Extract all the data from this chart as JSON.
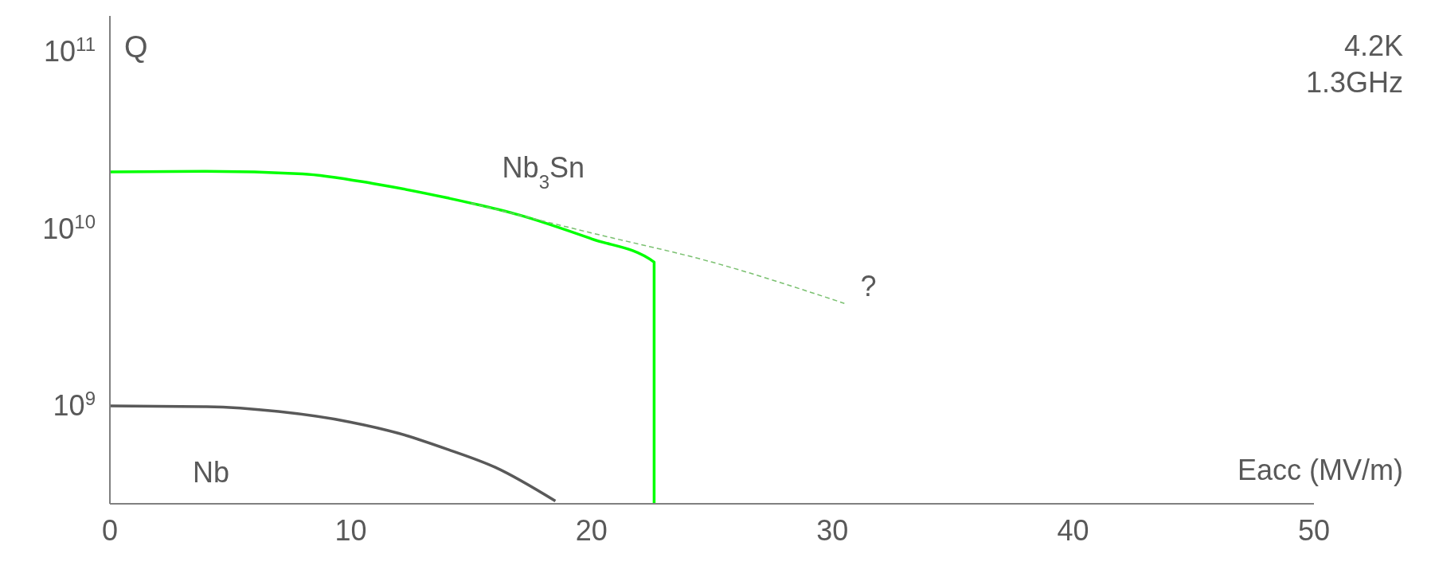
{
  "chart_data": {
    "type": "line",
    "xlabel": "Eacc (MV/m)",
    "ylabel": "Q",
    "log": "y",
    "marker": "none",
    "xlim": [
      0,
      50
    ],
    "xticks": [
      0,
      10,
      20,
      30,
      40,
      50
    ],
    "ylim": [
      280000000.0,
      160000000000.0
    ],
    "yticks": [
      {
        "value": 1000000000.0,
        "label": "10$^{9}$"
      },
      {
        "value": 10000000000.0,
        "label": "10$^{10}$"
      },
      {
        "value": 100000000000.0,
        "label": "10$^{11}$"
      }
    ],
    "series": [
      {
        "name": "Nb$_{3}$Sn",
        "color": "#00ff00",
        "line_style": "solid",
        "x": [
          0,
          4,
          8,
          11,
          14,
          17,
          20,
          22.6,
          22.6
        ],
        "values": [
          21000000000.0,
          21200000000.0,
          20500000000.0,
          18000000000.0,
          15000000000.0,
          12000000000.0,
          8800000000.0,
          6500000000.0,
          280000000.0
        ]
      },
      {
        "color": "#7ac070",
        "line_style": "dashed",
        "x": [
          15,
          20,
          25,
          30.5
        ],
        "values": [
          14000000000.0,
          9500000000.0,
          6500000000.0,
          3800000000.0
        ]
      },
      {
        "name": "Nb",
        "color": "#595959",
        "line_style": "solid",
        "x": [
          0,
          4,
          7,
          10,
          12,
          14,
          16,
          18.5
        ],
        "values": [
          1000000000.0,
          990000000.0,
          930000000.0,
          810000000.0,
          700000000.0,
          570000000.0,
          450000000.0,
          290000000.0
        ]
      }
    ],
    "annotations": [
      "4.2K",
      "1.3GHz",
      "?"
    ]
  }
}
